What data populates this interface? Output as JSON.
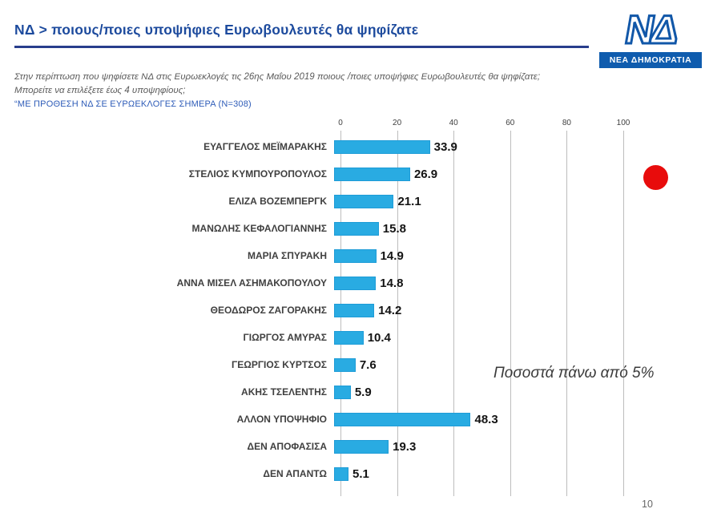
{
  "header": {
    "title": "ΝΔ > ποιους/ποιες υποψήφιες Ευρωβουλευτές θα ψηφίζατε",
    "logo": {
      "letters": "ΝΔ",
      "band": "ΝΕΑ ΔΗΜΟΚΡΑΤΙΑ"
    }
  },
  "intro": {
    "line1": "Στην περίπτωση που ψηφίσετε ΝΔ στις Ευρωεκλογές τις 26ης Μαΐου 2019 ποιους /ποιες υποψήφιες Ευρωβουλευτές θα ψηφίζατε;",
    "line2": "Μπορείτε να επιλέξετε έως 4 υποψηφίους;",
    "line3": "“ΜΕ ΠΡΟΘΕΣΗ ΝΔ ΣΕ ΕΥΡΩΕΚΛΟΓΕΣ ΣΗΜΕΡΑ (Ν=308)"
  },
  "chart_data": {
    "type": "bar",
    "orientation": "horizontal",
    "categories": [
      "ΕΥΑΓΓΕΛΟΣ ΜΕΪΜΑΡΑΚΗΣ",
      "ΣΤΕΛΙΟΣ ΚΥΜΠΟΥΡΟΠΟΥΛΟΣ",
      "ΕΛΙΖΑ ΒΟΖΕΜΠΕΡΓΚ",
      "ΜΑΝΩΛΗΣ ΚΕΦΑΛΟΓΙΑΝΝΗΣ",
      "ΜΑΡΙΑ ΣΠΥΡΑΚΗ",
      "ΑΝΝΑ ΜΙΣΕΛ ΑΣΗΜΑΚΟΠΟΥΛΟΥ",
      "ΘΕΟΔΩΡΟΣ ΖΑΓΟΡΑΚΗΣ",
      "ΓΙΩΡΓΟΣ ΑΜΥΡΑΣ",
      "ΓΕΩΡΓΙΟΣ ΚΥΡΤΣΟΣ",
      "ΑΚΗΣ ΤΣΕΛΕΝΤΗΣ",
      "ΑΛΛΟΝ ΥΠΟΨΗΦΙΟ",
      "ΔΕΝ ΑΠΟΦΑΣΙΣΑ",
      "ΔΕΝ ΑΠΑΝΤΩ"
    ],
    "values": [
      33.9,
      26.9,
      21.1,
      15.8,
      14.9,
      14.8,
      14.2,
      10.4,
      7.6,
      5.9,
      48.3,
      19.3,
      5.1
    ],
    "xticks": [
      0,
      20,
      40,
      60,
      80,
      100
    ],
    "xlim": [
      0,
      100
    ],
    "bar_color": "#29abe2",
    "grid": true,
    "title": "",
    "xlabel": "",
    "ylabel": ""
  },
  "annotation": {
    "text": "Ποσοστά πάνω από 5%"
  },
  "colors": {
    "accent_blue": "#1c4a9d",
    "bar_cyan": "#29abe2",
    "red_dot": "#e80c0c"
  },
  "footer": {
    "page_number": "10"
  }
}
